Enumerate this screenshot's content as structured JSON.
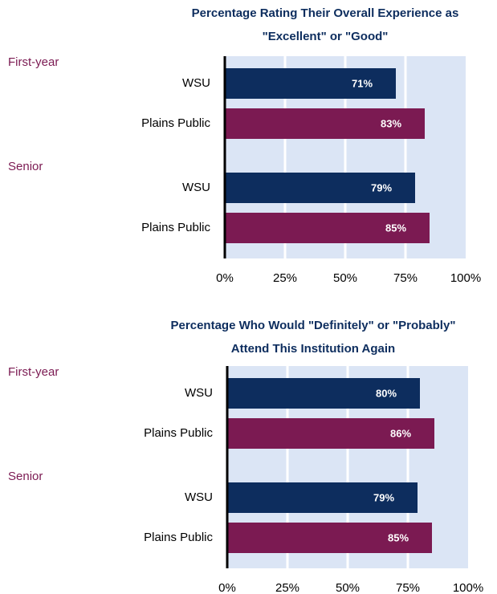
{
  "chart_data": [
    {
      "type": "bar",
      "orientation": "horizontal",
      "title": "Percentage Rating Their Overall Experience as \"Excellent\" or \"Good\"",
      "groups": [
        "First-year",
        "Senior"
      ],
      "series": [
        {
          "name": "WSU",
          "color": "#0d2d5e",
          "values": [
            71,
            79
          ],
          "value_labels": [
            "71%",
            "79%"
          ]
        },
        {
          "name": "Plains Public",
          "color": "#7b1a52",
          "values": [
            83,
            85
          ],
          "value_labels": [
            "83%",
            "85%"
          ]
        }
      ],
      "xlim": [
        0,
        100
      ],
      "xticks": [
        {
          "value": 0,
          "label": "0%"
        },
        {
          "value": 25,
          "label": "25%"
        },
        {
          "value": 50,
          "label": "50%"
        },
        {
          "value": 75,
          "label": "75%"
        },
        {
          "value": 100,
          "label": "100%"
        }
      ],
      "grid": true
    },
    {
      "type": "bar",
      "orientation": "horizontal",
      "title": "Percentage Who Would \"Definitely\" or \"Probably\" Attend This Institution Again",
      "groups": [
        "First-year",
        "Senior"
      ],
      "series": [
        {
          "name": "WSU",
          "color": "#0d2d5e",
          "values": [
            80,
            79
          ],
          "value_labels": [
            "80%",
            "79%"
          ]
        },
        {
          "name": "Plains Public",
          "color": "#7b1a52",
          "values": [
            86,
            85
          ],
          "value_labels": [
            "86%",
            "85%"
          ]
        }
      ],
      "xlim": [
        0,
        100
      ],
      "xticks": [
        {
          "value": 0,
          "label": "0%"
        },
        {
          "value": 25,
          "label": "25%"
        },
        {
          "value": 50,
          "label": "50%"
        },
        {
          "value": 75,
          "label": "75%"
        },
        {
          "value": 100,
          "label": "100%"
        }
      ],
      "grid": true
    }
  ]
}
